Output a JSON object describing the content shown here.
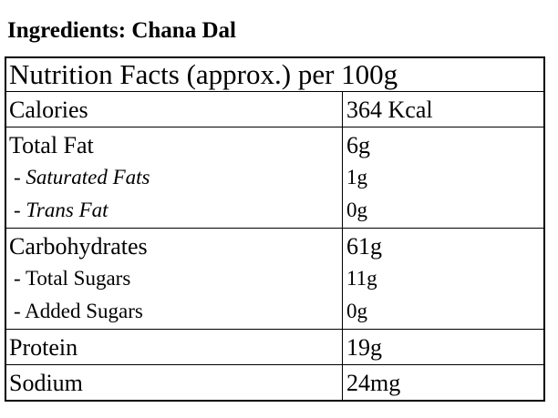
{
  "title": "Ingredients: Chana Dal",
  "table": {
    "header": "Nutrition Facts (approx.) per 100g",
    "groups": [
      {
        "rows": [
          [
            "Calories",
            "364 Kcal"
          ]
        ]
      },
      {
        "rows": [
          [
            "Total Fat",
            "6g"
          ],
          [
            "- Saturated Fats",
            "1g"
          ],
          [
            "- Trans Fat",
            "0g"
          ]
        ]
      },
      {
        "rows": [
          [
            "Carbohydrates",
            "61g"
          ],
          [
            "- Total Sugars",
            "11g"
          ],
          [
            "- Added Sugars",
            "0g"
          ]
        ]
      },
      {
        "rows": [
          [
            "Protein",
            "19g"
          ]
        ]
      },
      {
        "rows": [
          [
            "Sodium",
            "24mg"
          ]
        ]
      }
    ]
  }
}
